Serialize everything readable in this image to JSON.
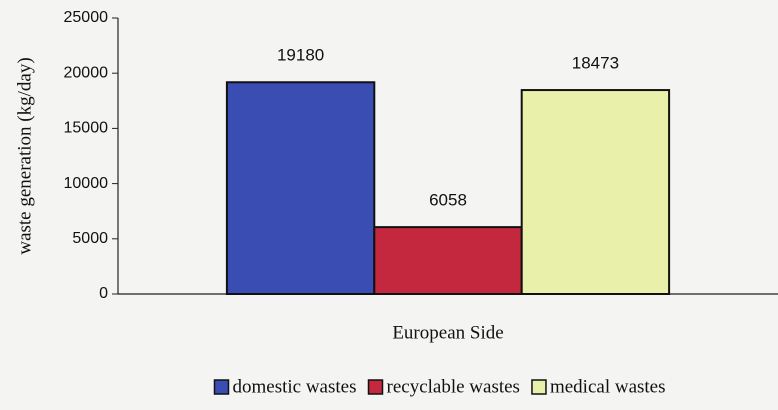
{
  "chart_data": {
    "type": "bar",
    "ylabel": "waste generation (kg/day)",
    "categories": [
      "European Side"
    ],
    "series": [
      {
        "name": "domestic wastes",
        "color": "#3a4db3",
        "values": [
          19180
        ]
      },
      {
        "name": "recyclable wastes",
        "color": "#c4283f",
        "values": [
          6058
        ]
      },
      {
        "name": "medical wastes",
        "color": "#e9f0aa",
        "values": [
          18473
        ]
      }
    ],
    "ylim": [
      0,
      25000
    ],
    "yticks": [
      0,
      5000,
      10000,
      15000,
      20000,
      25000
    ],
    "grid": false,
    "legend": "bottom"
  }
}
